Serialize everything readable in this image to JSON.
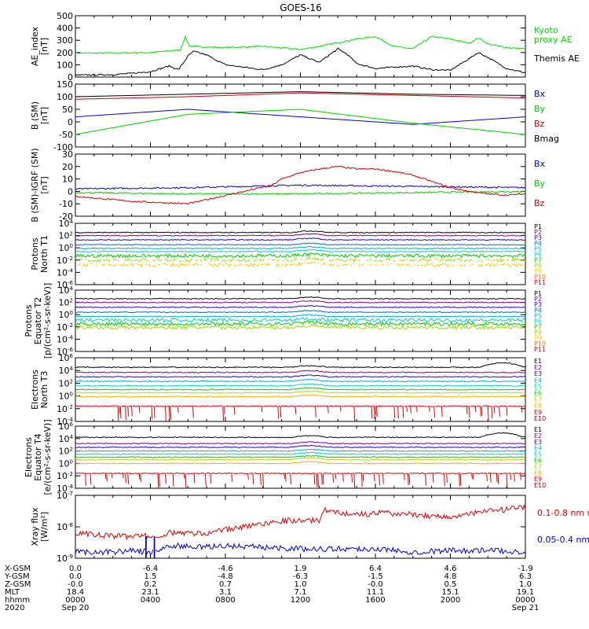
{
  "title": "GOES-16",
  "chart_data": [
    {
      "type": "line",
      "ylabel": [
        "AE_index",
        "[nT]"
      ],
      "ylim": [
        0,
        500
      ],
      "yticks": [
        "0",
        "100",
        "200",
        "300",
        "400",
        "500"
      ],
      "series": [
        {
          "name": "Kyoto proxy AE",
          "color": "#00dd00",
          "x": [
            0,
            2,
            4,
            5.6,
            5.85,
            6.1,
            7,
            8,
            10,
            12,
            13,
            14,
            15,
            16,
            17,
            18,
            19,
            20,
            21,
            21.5,
            22,
            23,
            24
          ],
          "y": [
            195,
            195,
            200,
            220,
            330,
            250,
            245,
            240,
            250,
            225,
            250,
            280,
            310,
            330,
            250,
            230,
            330,
            310,
            275,
            320,
            270,
            240,
            230
          ]
        },
        {
          "name": "Themis AE",
          "color": "#000000",
          "x": [
            0,
            2,
            3,
            4,
            5,
            5.5,
            6,
            6.3,
            7,
            8,
            9,
            10,
            11,
            12,
            13,
            14,
            14.5,
            15,
            16,
            17,
            18,
            19,
            20,
            21,
            21.5,
            22,
            23,
            24
          ],
          "y": [
            15,
            20,
            30,
            45,
            90,
            60,
            170,
            210,
            180,
            100,
            80,
            60,
            100,
            180,
            120,
            230,
            185,
            110,
            70,
            80,
            90,
            60,
            55,
            150,
            200,
            160,
            70,
            35
          ]
        }
      ]
    },
    {
      "type": "line",
      "ylabel": [
        "B (SM)",
        "[nT]"
      ],
      "ylim": [
        -100,
        150
      ],
      "yticks": [
        "-100",
        "-50",
        "0",
        "50",
        "100",
        "150"
      ],
      "series": [
        {
          "name": "Bx",
          "color": "#0000dd",
          "x": [
            0,
            6,
            12,
            18,
            24
          ],
          "y": [
            20,
            50,
            20,
            -10,
            20
          ]
        },
        {
          "name": "By",
          "color": "#00cc00",
          "x": [
            0,
            6,
            12,
            18,
            24
          ],
          "y": [
            -50,
            30,
            50,
            -5,
            -50
          ]
        },
        {
          "name": "Bz",
          "color": "#cc0000",
          "x": [
            0,
            6,
            12,
            18,
            24
          ],
          "y": [
            90,
            100,
            115,
            105,
            95
          ]
        },
        {
          "name": "Bmag",
          "color": "#000000",
          "x": [
            0,
            6,
            12,
            18,
            24
          ],
          "y": [
            100,
            110,
            120,
            110,
            105
          ]
        }
      ]
    },
    {
      "type": "line",
      "ylabel": [
        "B (SM)-IGRF (SM)",
        "[nT]"
      ],
      "ylim": [
        -20,
        30
      ],
      "yticks": [
        "-20",
        "-10",
        "0",
        "10",
        "20",
        "30"
      ],
      "series": [
        {
          "name": "Bx",
          "color": "#0000dd",
          "x": [
            0,
            6,
            12,
            18,
            24
          ],
          "y": [
            2,
            3,
            5,
            4,
            3
          ]
        },
        {
          "name": "By",
          "color": "#00cc00",
          "x": [
            0,
            6,
            12,
            18,
            24
          ],
          "y": [
            -1,
            -2,
            -2,
            -1,
            0
          ]
        },
        {
          "name": "Bz",
          "color": "#cc0000",
          "x": [
            0,
            3,
            6,
            7.5,
            9,
            10.5,
            11,
            12,
            13,
            14,
            15,
            16,
            17,
            18,
            19,
            20,
            21,
            22,
            23,
            24
          ],
          "y": [
            -4,
            -8,
            -10,
            -5,
            0,
            5,
            10,
            15,
            18,
            20,
            18,
            18,
            16,
            13,
            8,
            3,
            0,
            -2,
            -3,
            -2
          ]
        }
      ]
    },
    {
      "type": "line",
      "ylabel": [
        "Protons",
        "North T1"
      ],
      "ylog": true,
      "ylim": [
        -6,
        4
      ],
      "yticks": [
        "10^-6",
        "10^-4",
        "10^-2",
        "10^0",
        "10^2",
        "10^4"
      ],
      "series": [
        {
          "name": "P1",
          "color": "#000000",
          "level": 2.5
        },
        {
          "name": "P2",
          "color": "#7b0099",
          "level": 2.0
        },
        {
          "name": "P3",
          "color": "#2800dd",
          "level": 1.3
        },
        {
          "name": "P4",
          "color": "#0066ff",
          "level": 0.5
        },
        {
          "name": "P5",
          "color": "#00aadd",
          "level": -0.1
        },
        {
          "name": "P6",
          "color": "#00cccc",
          "level": -0.6
        },
        {
          "name": "P7",
          "color": "#00cc00",
          "level": -1.3,
          "noisy": true
        },
        {
          "name": "P8",
          "color": "#99dd00",
          "level": -2.0,
          "noisy": true,
          "gappy": true
        },
        {
          "name": "P9",
          "color": "#eecc00",
          "level": -2.8,
          "noisy": true,
          "gappy": true
        },
        {
          "name": "P10",
          "color": "#ff6600",
          "level": null
        },
        {
          "name": "P11",
          "color": "#dd0000",
          "level": null
        }
      ]
    },
    {
      "type": "line",
      "ylabel": [
        "Protons",
        "Equator T2",
        "[p/(cm^2-s-sr-keV)]"
      ],
      "ylog": true,
      "ylim": [
        -6,
        4
      ],
      "yticks": [
        "10^-6",
        "10^-4",
        "10^-2",
        "10^0",
        "10^2",
        "10^4"
      ],
      "series": [
        {
          "name": "P1",
          "color": "#000000",
          "level": 2.6
        },
        {
          "name": "P2",
          "color": "#7b0099",
          "level": 2.0
        },
        {
          "name": "P3",
          "color": "#2800dd",
          "level": 1.2
        },
        {
          "name": "P4",
          "color": "#0066ff",
          "level": 0.4
        },
        {
          "name": "P5",
          "color": "#00aadd",
          "level": -0.3
        },
        {
          "name": "P6",
          "color": "#00cccc",
          "level": -0.9,
          "noisy": true
        },
        {
          "name": "P7",
          "color": "#00cc00",
          "level": -1.5,
          "noisy": true
        },
        {
          "name": "P8",
          "color": "#99dd00",
          "level": -2.1,
          "noisy": true
        },
        {
          "name": "P9",
          "color": "#eecc00",
          "level": null
        },
        {
          "name": "P10",
          "color": "#ff6600",
          "level": null
        },
        {
          "name": "P11",
          "color": "#dd0000",
          "level": null
        }
      ]
    },
    {
      "type": "line",
      "ylabel": [
        "Electrons",
        "North T3"
      ],
      "ylog": true,
      "ylim": [
        -4,
        6
      ],
      "yticks": [
        "10^-4",
        "10^-2",
        "10^0",
        "10^2",
        "10^4",
        "10^6"
      ],
      "series": [
        {
          "name": "E1",
          "color": "#000000",
          "level": 4.5,
          "bump": true
        },
        {
          "name": "E2",
          "color": "#7b0099",
          "level": 3.7
        },
        {
          "name": "E3",
          "color": "#2800dd",
          "level": 3.0
        },
        {
          "name": "E4",
          "color": "#00aadd",
          "level": 2.3
        },
        {
          "name": "E5",
          "color": "#00cccc",
          "level": 1.6
        },
        {
          "name": "E6",
          "color": "#00cc00",
          "level": 1.0
        },
        {
          "name": "E7",
          "color": "#aadd00",
          "level": 0.5
        },
        {
          "name": "E8",
          "color": "#ffaa00",
          "level": -0.1
        },
        {
          "name": "E9",
          "color": "#dd0000",
          "level": -1.6,
          "spiky": true
        },
        {
          "name": "E10",
          "color": "#aa0000",
          "level": null
        }
      ]
    },
    {
      "type": "line",
      "ylabel": [
        "Electrons",
        "Equator T4",
        "[e/(cm^2-s-sr-keV)]"
      ],
      "ylog": true,
      "ylim": [
        -4,
        6
      ],
      "yticks": [
        "10^-4",
        "10^-2",
        "10^0",
        "10^2",
        "10^4",
        "10^6"
      ],
      "series": [
        {
          "name": "E1",
          "color": "#000000",
          "level": 4.2,
          "bump": true
        },
        {
          "name": "E2",
          "color": "#7b0099",
          "level": 3.2
        },
        {
          "name": "E3",
          "color": "#2800dd",
          "level": 2.6
        },
        {
          "name": "E4",
          "color": "#00aadd",
          "level": 2.0
        },
        {
          "name": "E5",
          "color": "#00cccc",
          "level": 1.5
        },
        {
          "name": "E6",
          "color": "#00cc00",
          "level": 1.0
        },
        {
          "name": "E7",
          "color": "#aadd00",
          "level": 0.6
        },
        {
          "name": "E8",
          "color": "#ffaa00",
          "level": 0.0
        },
        {
          "name": "E9",
          "color": "#dd0000",
          "level": -1.6,
          "spiky": true
        },
        {
          "name": "E10",
          "color": "#aa0000",
          "level": null
        }
      ]
    },
    {
      "type": "line",
      "ylabel": [
        "Xray flux",
        "[W/m^2]"
      ],
      "ylog": true,
      "ylim": [
        -9,
        -7
      ],
      "yticks": [
        "10^-9",
        "10^-8",
        "10^-7"
      ],
      "series": [
        {
          "name": "0.1-0.8 nm",
          "color": "#dd0000",
          "x": [
            0,
            2,
            3,
            3.9,
            4.2,
            5,
            7,
            8,
            10,
            11,
            12,
            13,
            13.3,
            14,
            15,
            16,
            16.5,
            17,
            18,
            19,
            20,
            21,
            22,
            23,
            24
          ],
          "y": [
            -8.2,
            -8.3,
            -8.3,
            -8.3,
            -8.3,
            -8.2,
            -8.2,
            -8.1,
            -7.9,
            -7.8,
            -7.8,
            -7.8,
            -7.45,
            -7.55,
            -7.6,
            -7.6,
            -7.5,
            -7.6,
            -7.6,
            -7.65,
            -7.7,
            -7.6,
            -7.5,
            -7.45,
            -7.4
          ]
        },
        {
          "name": "0.05-0.4 nm",
          "color": "#0000dd",
          "x": [
            0,
            2,
            3,
            3.9,
            4.2,
            5,
            7,
            8,
            10,
            12,
            14,
            16,
            18,
            20,
            22,
            24
          ],
          "y": [
            -8.8,
            -8.8,
            -8.75,
            -8.8,
            -8.8,
            -8.6,
            -8.65,
            -8.6,
            -8.65,
            -8.7,
            -8.7,
            -8.7,
            -8.8,
            -8.75,
            -8.75,
            -8.8
          ]
        }
      ],
      "gaps": [
        [
          3.75,
          3.78
        ],
        [
          4.2,
          4.23
        ]
      ]
    }
  ],
  "x_axis": {
    "rows": [
      {
        "label": "X-GSM",
        "values": [
          "0.0",
          "-6.4",
          "-4.6",
          "1.9",
          "6.4",
          "4.6",
          "-1.9"
        ]
      },
      {
        "label": "Y-GSM",
        "values": [
          "0.0",
          "1.5",
          "-4.8",
          "-6.3",
          "-1.5",
          "4.8",
          "6.3"
        ]
      },
      {
        "label": "Z-GSM",
        "values": [
          "-0.0",
          "0.2",
          "0.7",
          "1.0",
          "-0.0",
          "0.5",
          "1.0"
        ]
      },
      {
        "label": "MLT",
        "values": [
          "18.4",
          "23.1",
          "3.1",
          "7.1",
          "11.1",
          "15.1",
          "19.1"
        ]
      },
      {
        "label": "hhmm",
        "values": [
          "0000",
          "0400",
          "0800",
          "1200",
          "1600",
          "2000",
          "0000"
        ]
      },
      {
        "label": "2020",
        "values": [
          "Sep 20",
          "",
          "",
          "",
          "",
          "",
          "Sep 21"
        ]
      }
    ]
  }
}
